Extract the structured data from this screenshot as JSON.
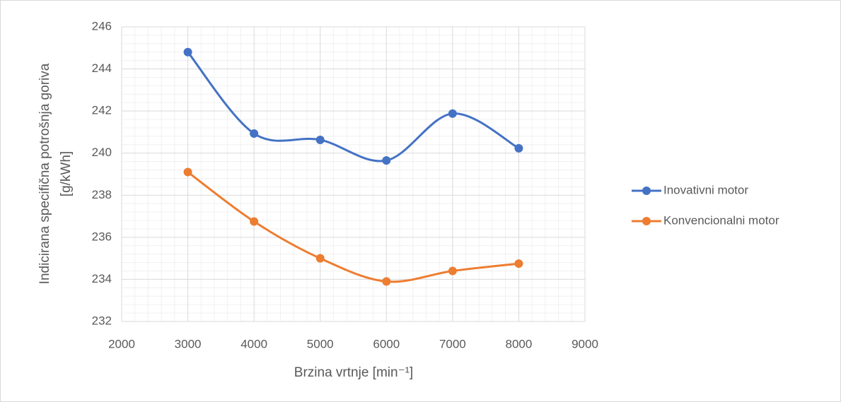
{
  "chart_data": {
    "type": "line",
    "xlabel": "Brzina vrtnje [min⁻¹]",
    "ylabel": [
      "Indicirana specifična potrošnja goriva",
      "[g/kWh]"
    ],
    "x": [
      3000,
      4000,
      5000,
      6000,
      7000,
      8000
    ],
    "series": [
      {
        "name": "Inovativni motor",
        "color": "#4472c4",
        "values": [
          244.8,
          240.93,
          240.63,
          239.65,
          241.88,
          240.23
        ]
      },
      {
        "name": "Konvencionalni motor",
        "color": "#ed7d31",
        "values": [
          239.1,
          236.75,
          235.0,
          233.9,
          234.4,
          234.75
        ]
      }
    ],
    "xlim": [
      2000,
      9000
    ],
    "xticks": [
      2000,
      3000,
      4000,
      5000,
      6000,
      7000,
      8000,
      9000
    ],
    "ylim": [
      232,
      246
    ],
    "yticks": [
      232,
      234,
      236,
      238,
      240,
      242,
      244,
      246
    ],
    "grid": true,
    "smooth": true,
    "legend": "right"
  }
}
